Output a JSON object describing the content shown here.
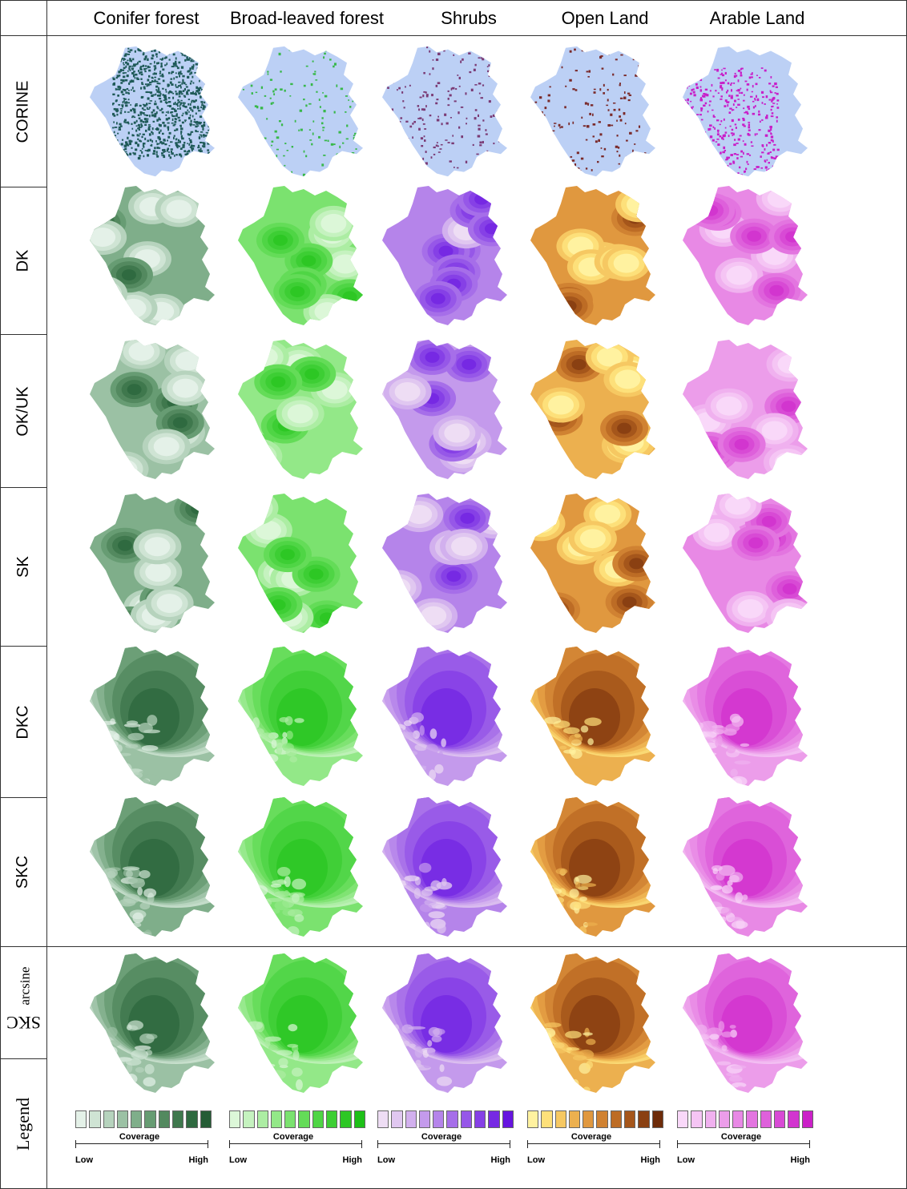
{
  "columns": [
    "Conifer forest",
    "Broad-leaved forest",
    "Shrubs",
    "Open Land",
    "Arable Land"
  ],
  "rows": [
    {
      "label": "CORINE"
    },
    {
      "label": "DK"
    },
    {
      "label": "OK/UK"
    },
    {
      "label": "SK"
    },
    {
      "label": "DKC"
    },
    {
      "label": "SKC"
    },
    {
      "label": "SKC",
      "sub": "arcsine"
    },
    {
      "label": "Legend"
    }
  ],
  "legend": {
    "title": "Coverage",
    "low": "Low",
    "high": "High"
  },
  "palettes": {
    "conifer": [
      "#e4f1e8",
      "#cfe4d4",
      "#b6d3bd",
      "#9bc1a4",
      "#7fae8a",
      "#679c73",
      "#53895f",
      "#3f784d",
      "#2f6a40",
      "#245c35"
    ],
    "broadleaf": [
      "#dcf7d8",
      "#c5f2bf",
      "#acedA3",
      "#93e888",
      "#7be26f",
      "#64dc58",
      "#4fd545",
      "#3dce34",
      "#2dc724",
      "#1ec018"
    ],
    "shrubs": [
      "#eeddf4",
      "#e0c7f0",
      "#d2b0ee",
      "#c49aec",
      "#b584ea",
      "#a66ee9",
      "#9657e8",
      "#8640e6",
      "#7629e3",
      "#6614df"
    ],
    "open": [
      "#fff2a0",
      "#fde07a",
      "#f6c862",
      "#ecb04f",
      "#e0983f",
      "#d08232",
      "#bd6c25",
      "#a5561b",
      "#8a4012",
      "#6e2c0a"
    ],
    "arable": [
      "#f9d8f9",
      "#f5c5f4",
      "#f0b1ef",
      "#ec9dea",
      "#e889e5",
      "#e375e0",
      "#de60db",
      "#d84ad5",
      "#d235cf",
      "#cb20c8"
    ],
    "corine_bg": "#bcd0f5",
    "corine_marks": [
      "#1f5a58",
      "#38b84a",
      "#7a3a74",
      "#7a2a2a",
      "#c81ec8"
    ]
  }
}
